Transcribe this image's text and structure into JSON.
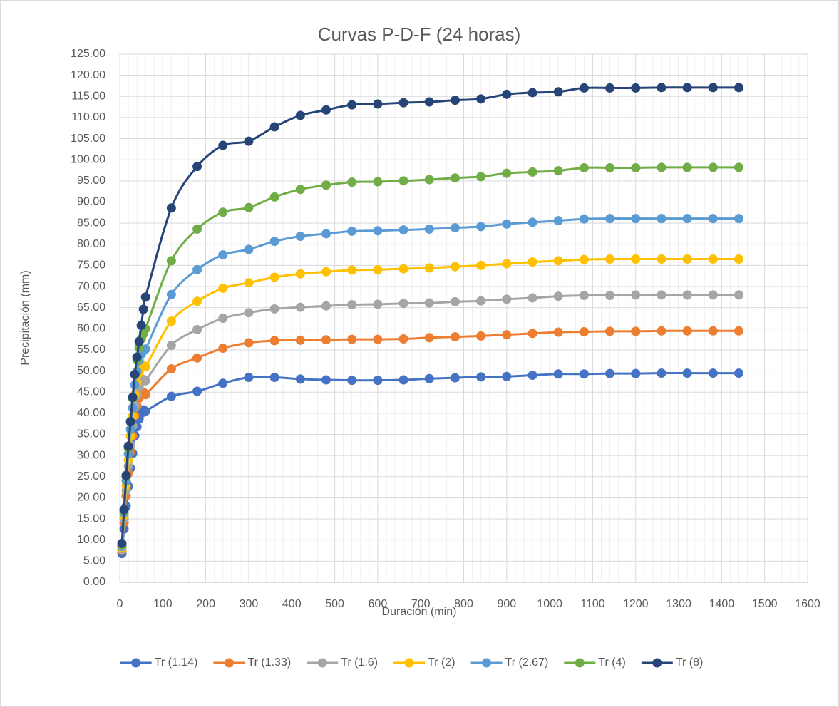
{
  "chart_data": {
    "type": "line",
    "title": "Curvas P-D-F (24 horas)",
    "x_label": "Duración (min)",
    "y_label": "Precipitación (mm)",
    "x": [
      5,
      10,
      15,
      20,
      25,
      30,
      35,
      40,
      45,
      50,
      55,
      60,
      120,
      180,
      240,
      300,
      360,
      420,
      480,
      540,
      600,
      660,
      720,
      780,
      840,
      900,
      960,
      1020,
      1080,
      1140,
      1200,
      1260,
      1320,
      1380,
      1440
    ],
    "series": [
      {
        "name": "Tr (1.14)",
        "color": "#4472c4",
        "values": [
          6.8,
          12.6,
          18,
          22.7,
          27,
          30.5,
          34.7,
          36.8,
          38.6,
          40,
          40.8,
          40.5,
          44,
          45.2,
          47.1,
          48.5,
          48.5,
          48.1,
          47.9,
          47.8,
          47.8,
          47.9,
          48.2,
          48.4,
          48.6,
          48.7,
          49,
          49.3,
          49.3,
          49.4,
          49.4,
          49.5,
          49.5,
          49.5,
          49.5
        ]
      },
      {
        "name": "Tr (1.33)",
        "color": "#ed7d31",
        "values": [
          7.5,
          14.2,
          20.5,
          25.8,
          30.8,
          34.6,
          39.4,
          41.8,
          43.6,
          44.6,
          45,
          44.4,
          50.5,
          53.1,
          55.4,
          56.7,
          57.2,
          57.3,
          57.4,
          57.5,
          57.5,
          57.6,
          57.9,
          58.1,
          58.3,
          58.6,
          58.9,
          59.2,
          59.3,
          59.4,
          59.4,
          59.5,
          59.5,
          59.5,
          59.5
        ]
      },
      {
        "name": "Tr (1.6)",
        "color": "#a5a5a5",
        "values": [
          7.8,
          15,
          21.7,
          27.5,
          32.6,
          37,
          41.7,
          44.3,
          46.3,
          47.5,
          48,
          47.7,
          56.1,
          59.8,
          62.5,
          63.8,
          64.7,
          65.1,
          65.4,
          65.7,
          65.8,
          66,
          66.1,
          66.4,
          66.6,
          67,
          67.3,
          67.7,
          67.9,
          67.9,
          68,
          68,
          68,
          68,
          68
        ]
      },
      {
        "name": "Tr (2)",
        "color": "#ffc000",
        "values": [
          8.2,
          15.8,
          22.9,
          29,
          34.6,
          39.3,
          44.4,
          47.3,
          49.5,
          50.8,
          51.3,
          51,
          61.8,
          66.5,
          69.6,
          70.9,
          72.2,
          73,
          73.5,
          73.9,
          74,
          74.2,
          74.4,
          74.7,
          75,
          75.4,
          75.8,
          76.1,
          76.4,
          76.5,
          76.5,
          76.5,
          76.5,
          76.5,
          76.5
        ]
      },
      {
        "name": "Tr (2.67)",
        "color": "#5b9bd5",
        "values": [
          8.5,
          16.5,
          24,
          30.4,
          36.2,
          41.3,
          46.7,
          49.9,
          52.5,
          54,
          54.8,
          55.2,
          68.1,
          74,
          77.5,
          78.8,
          80.7,
          81.9,
          82.5,
          83.1,
          83.2,
          83.4,
          83.6,
          83.9,
          84.2,
          84.8,
          85.2,
          85.6,
          86,
          86.1,
          86.1,
          86.1,
          86.1,
          86.1,
          86.1
        ]
      },
      {
        "name": "Tr (4)",
        "color": "#70ad47",
        "values": [
          8.8,
          17,
          25,
          31.8,
          38,
          43.6,
          49.2,
          52.6,
          55.6,
          57.6,
          58.8,
          60,
          76.1,
          83.6,
          87.6,
          88.7,
          91.2,
          93,
          94,
          94.7,
          94.8,
          95,
          95.3,
          95.7,
          96,
          96.8,
          97.1,
          97.4,
          98.1,
          98.1,
          98.1,
          98.2,
          98.2,
          98.2,
          98.2
        ]
      },
      {
        "name": "Tr (8)",
        "color": "#264478",
        "values": [
          9.2,
          17.2,
          25.3,
          32.2,
          38,
          43.8,
          49.2,
          53.3,
          57,
          60.8,
          64.6,
          67.5,
          88.6,
          98.4,
          103.4,
          104.4,
          107.8,
          110.5,
          111.8,
          113,
          113.2,
          113.5,
          113.7,
          114.1,
          114.4,
          115.5,
          115.9,
          116.1,
          117,
          117,
          117,
          117.1,
          117.1,
          117.1,
          117.1
        ]
      }
    ],
    "xlim": [
      0,
      1600
    ],
    "xticks": [
      0,
      100,
      200,
      300,
      400,
      500,
      600,
      700,
      800,
      900,
      1000,
      1100,
      1200,
      1300,
      1400,
      1500,
      1600
    ],
    "ylim": [
      0,
      125
    ],
    "yticks": [
      {
        "value": 0,
        "label": "0.00"
      },
      {
        "value": 5,
        "label": "5.00"
      },
      {
        "value": 10,
        "label": "10.00"
      },
      {
        "value": 15,
        "label": "15.00"
      },
      {
        "value": 20,
        "label": "20.00"
      },
      {
        "value": 25,
        "label": "25.00"
      },
      {
        "value": 30,
        "label": "30.00"
      },
      {
        "value": 35,
        "label": "35.00"
      },
      {
        "value": 40,
        "label": "40.00"
      },
      {
        "value": 45,
        "label": "45.00"
      },
      {
        "value": 50,
        "label": "50.00"
      },
      {
        "value": 55,
        "label": "55.00"
      },
      {
        "value": 60,
        "label": "60.00"
      },
      {
        "value": 65,
        "label": "65.00"
      },
      {
        "value": 70,
        "label": "70.00"
      },
      {
        "value": 75,
        "label": "75.00"
      },
      {
        "value": 80,
        "label": "80.00"
      },
      {
        "value": 85,
        "label": "85.00"
      },
      {
        "value": 90,
        "label": "90.00"
      },
      {
        "value": 95,
        "label": "95.00"
      },
      {
        "value": 100,
        "label": "100.00"
      },
      {
        "value": 105,
        "label": "105.00"
      },
      {
        "value": 110,
        "label": "110.00"
      },
      {
        "value": 115,
        "label": "115.00"
      },
      {
        "value": 120,
        "label": "120.00"
      },
      {
        "value": 125,
        "label": "125.00"
      }
    ],
    "grid": true,
    "legend": "bottom"
  }
}
